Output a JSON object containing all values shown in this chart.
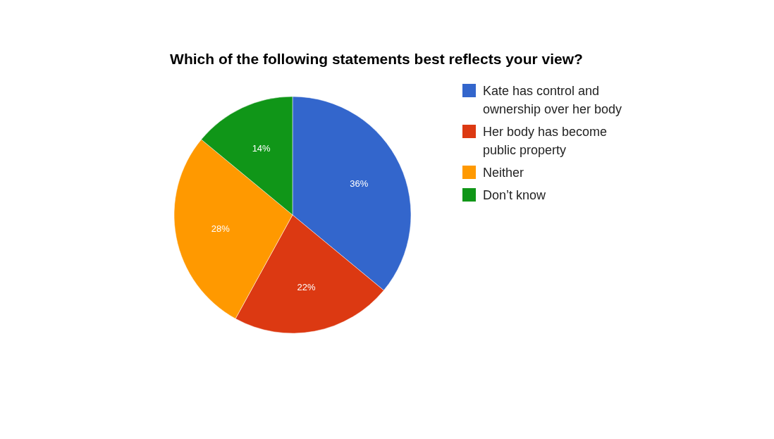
{
  "chart_data": {
    "type": "pie",
    "title": "Which of the following statements best reflects your view?",
    "categories": [
      "Kate has control and ownership over her body",
      "Her body has become public property",
      "Neither",
      "Don’t know"
    ],
    "values": [
      36,
      22,
      28,
      14
    ],
    "colors": [
      "#3366cc",
      "#dc3912",
      "#ff9900",
      "#109618"
    ],
    "value_labels": [
      "36%",
      "22%",
      "28%",
      "14%"
    ],
    "legend": "right"
  }
}
